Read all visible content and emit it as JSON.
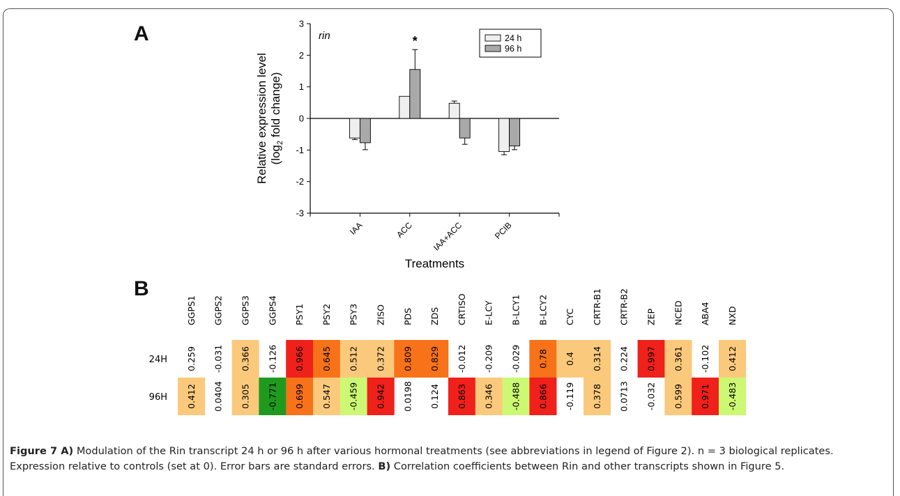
{
  "panels": {
    "a_letter": "A",
    "b_letter": "B"
  },
  "chart_data": [
    {
      "type": "bar",
      "title": "rin",
      "xlabel": "Treatments",
      "ylabel_line1": "Relative expression level",
      "ylabel_line2_pre": "(log",
      "ylabel_line2_sub": "2",
      "ylabel_line2_post": " fold change)",
      "categories": [
        "IAA",
        "ACC",
        "IAA+ACC",
        "PCIB"
      ],
      "series": [
        {
          "name": "24 h",
          "color": "#efefef",
          "values": [
            -0.62,
            0.7,
            0.48,
            -1.05
          ],
          "errors": [
            0.05,
            0.0,
            0.07,
            0.1
          ]
        },
        {
          "name": "96 h",
          "color": "#a9a9a9",
          "values": [
            -0.77,
            1.55,
            -0.62,
            -0.87
          ],
          "errors": [
            0.22,
            0.63,
            0.2,
            0.12
          ]
        }
      ],
      "ylim": [
        -3,
        3
      ],
      "yticks": [
        "-3",
        "-2",
        "-1",
        "0",
        "1",
        "2",
        "3"
      ],
      "annotation": {
        "text": "*",
        "category": "ACC",
        "series": "96 h"
      },
      "legend_position": "top-right",
      "grid": false
    },
    {
      "type": "heatmap",
      "columns": [
        "GGPS1",
        "GGPS2",
        "GGPS3",
        "GGPS4",
        "PSY1",
        "PSY2",
        "PSY3",
        "ZISO",
        "PDS",
        "ZDS",
        "CRTISO",
        "E-LCY",
        "B-LCY1",
        "B-LCY2",
        "CYC",
        "CRTR-B1",
        "CRTR-B2",
        "ZEP",
        "NCED",
        "ABA4",
        "NXD"
      ],
      "rows": [
        {
          "label": "24H",
          "values": [
            "0.259",
            "-0.031",
            "0.366",
            "-0.126",
            "0.966",
            "0.645",
            "0.512",
            "0.372",
            "0.809",
            "0.829",
            "-0.012",
            "-0.209",
            "-0.029",
            "0.78",
            "0.4",
            "0.314",
            "0.224",
            "0.997",
            "0.361",
            "-0.102",
            "0.412"
          ]
        },
        {
          "label": "96H",
          "values": [
            "0.412",
            "0.0404",
            "0.305",
            "-0.771",
            "0.699",
            "0.547",
            "-0.459",
            "0.942",
            "0.0198",
            "0.124",
            "0.863",
            "0.346",
            "-0.488",
            "0.866",
            "-0.119",
            "0.378",
            "0.0713",
            "-0.032",
            "0.599",
            "0.971",
            "-0.483"
          ]
        }
      ],
      "colors": {
        "orange_light": "#fbc97c",
        "orange": "#f77218",
        "red": "#f0201a",
        "green_light": "#cdf873",
        "green_dark": "#1f9a1e",
        "none": "#ffffff"
      }
    }
  ],
  "caption": {
    "fig_label": "Figure 7 A)",
    "text_a": " Modulation of the Rin transcript 24 h or 96 h after various hormonal treatments (see abbreviations in legend of Figure 2). n = 3 biological replicates. Expression relative to controls (set at 0). Error bars are standard errors. ",
    "b_label": "B)",
    "text_b": " Correlation coefficients between Rin and other transcripts shown in Figure 5."
  }
}
